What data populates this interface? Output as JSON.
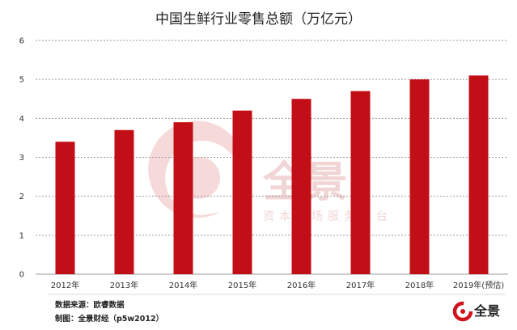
{
  "chart_data": {
    "type": "bar",
    "title": "中国生鲜行业零售总额（万亿元）",
    "categories": [
      "2012年",
      "2013年",
      "2014年",
      "2015年",
      "2016年",
      "2017年",
      "2018年",
      "2019年(预估)"
    ],
    "values": [
      3.4,
      3.7,
      3.9,
      4.2,
      4.5,
      4.7,
      5.0,
      5.1
    ],
    "y_ticks": [
      "0",
      "1",
      "2",
      "3",
      "4",
      "5",
      "6"
    ],
    "ylim": [
      0,
      6
    ],
    "xlabel": "",
    "ylabel": "",
    "grid": true,
    "bar_color": "#c20f17"
  },
  "footer": {
    "source": "数据来源：欧睿数据",
    "credit": "制图：全景财经（p5w2012）"
  },
  "watermark": {
    "main": "全景",
    "sub": "资本市场服务平台"
  },
  "logo": {
    "text": "全景",
    "color": "#d0121b"
  }
}
